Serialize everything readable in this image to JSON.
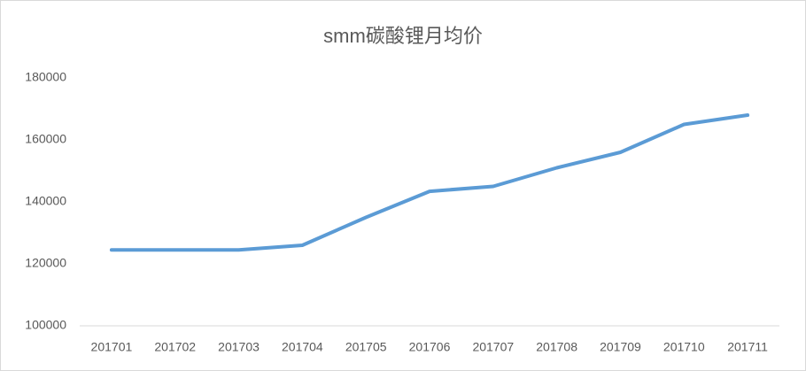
{
  "chart_data": {
    "type": "line",
    "title": "smm碳酸锂月均价",
    "categories": [
      "201701",
      "201702",
      "201703",
      "201704",
      "201705",
      "201706",
      "201707",
      "201708",
      "201709",
      "201710",
      "201711"
    ],
    "values": [
      124500,
      124500,
      124500,
      126000,
      135000,
      143400,
      145000,
      151000,
      156000,
      165000,
      168000
    ],
    "color": "#5b9bd5",
    "ylim": [
      100000,
      180000
    ],
    "yticks": [
      100000,
      120000,
      140000,
      160000,
      180000
    ],
    "grid": false
  }
}
